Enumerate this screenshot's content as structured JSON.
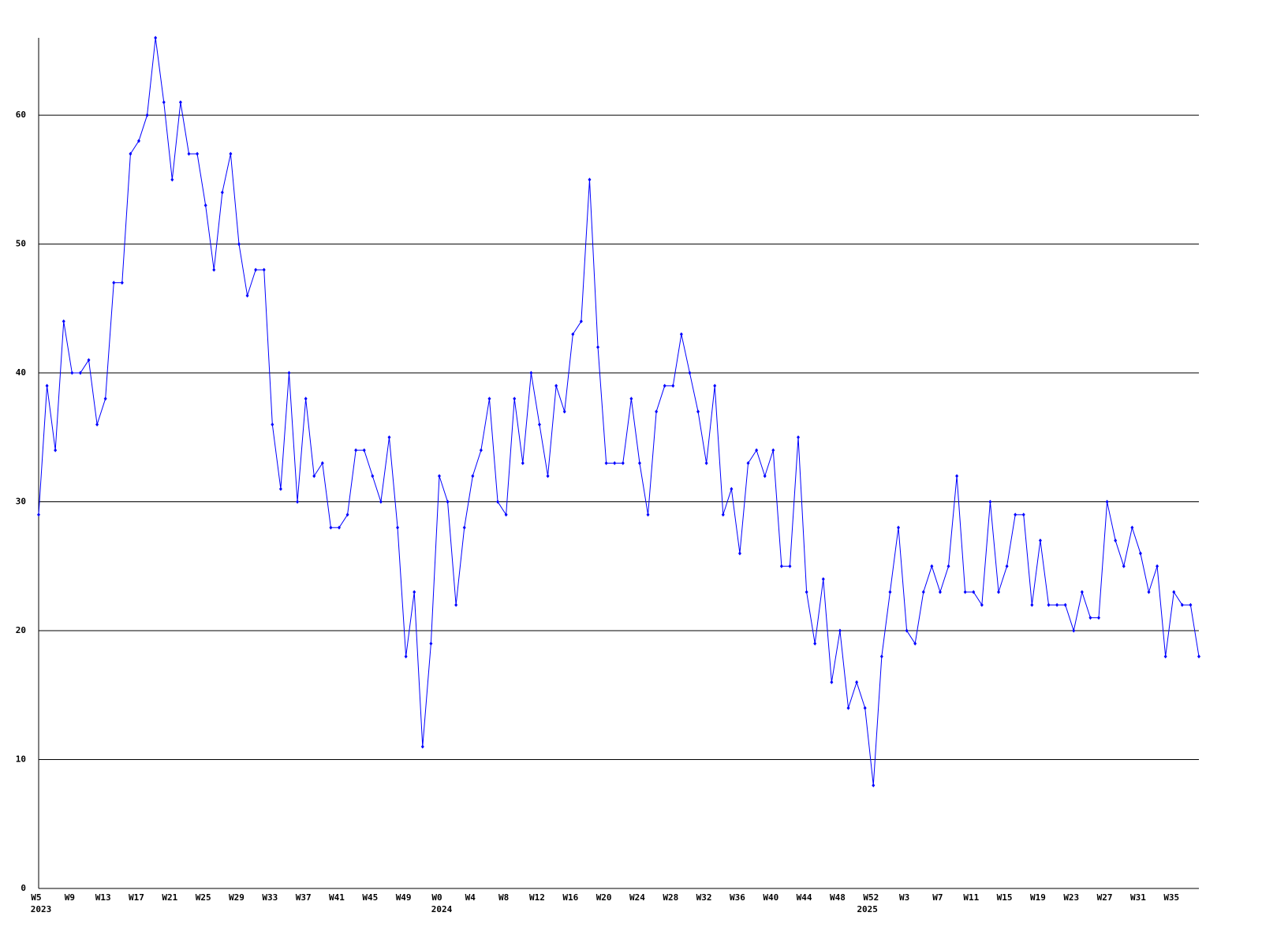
{
  "chart_data": {
    "type": "line",
    "color": "#0000ff",
    "grid": true,
    "ylim": [
      0,
      66
    ],
    "yticks": [
      0,
      10,
      20,
      30,
      40,
      50,
      60
    ],
    "categories": [
      "W5",
      null,
      null,
      null,
      "W9",
      null,
      null,
      null,
      "W13",
      null,
      null,
      null,
      "W17",
      null,
      null,
      null,
      "W21",
      null,
      null,
      null,
      "W25",
      null,
      null,
      null,
      "W29",
      null,
      null,
      null,
      "W33",
      null,
      null,
      null,
      "W37",
      null,
      null,
      null,
      "W41",
      null,
      null,
      null,
      "W45",
      null,
      null,
      null,
      "W49",
      null,
      null,
      null,
      "W0",
      null,
      null,
      null,
      "W4",
      null,
      null,
      null,
      "W8",
      null,
      null,
      null,
      "W12",
      null,
      null,
      null,
      "W16",
      null,
      null,
      null,
      "W20",
      null,
      null,
      null,
      "W24",
      null,
      null,
      null,
      "W28",
      null,
      null,
      null,
      "W32",
      null,
      null,
      null,
      "W36",
      null,
      null,
      null,
      "W40",
      null,
      null,
      null,
      "W44",
      null,
      null,
      null,
      "W48",
      null,
      null,
      null,
      "W52",
      null,
      null,
      null,
      "W3",
      null,
      null,
      null,
      "W7",
      null,
      null,
      null,
      "W11",
      null,
      null,
      null,
      "W15",
      null,
      null,
      null,
      "W19",
      null,
      null,
      null,
      "W23",
      null,
      null,
      null,
      "W27",
      null,
      null,
      null,
      "W31",
      null,
      null,
      null,
      "W35",
      null,
      null,
      null
    ],
    "category_years": [
      "2023",
      null,
      null,
      null,
      null,
      null,
      null,
      null,
      null,
      null,
      null,
      null,
      null,
      null,
      null,
      null,
      null,
      null,
      null,
      null,
      null,
      null,
      null,
      null,
      null,
      null,
      null,
      null,
      null,
      null,
      null,
      null,
      null,
      null,
      null,
      null,
      null,
      null,
      null,
      null,
      null,
      null,
      null,
      null,
      null,
      null,
      null,
      null,
      "2024",
      null,
      null,
      null,
      null,
      null,
      null,
      null,
      null,
      null,
      null,
      null,
      null,
      null,
      null,
      null,
      null,
      null,
      null,
      null,
      null,
      null,
      null,
      null,
      null,
      null,
      null,
      null,
      null,
      null,
      null,
      null,
      null,
      null,
      null,
      null,
      null,
      null,
      null,
      null,
      null,
      null,
      null,
      null,
      null,
      null,
      null,
      null,
      null,
      null,
      null,
      "2025",
      null,
      null,
      null,
      null,
      null,
      null,
      null,
      null,
      null,
      null,
      null,
      null,
      null,
      null,
      null,
      null,
      null,
      null,
      null,
      null,
      null,
      null,
      null,
      null,
      null,
      null,
      null,
      null,
      null,
      null,
      null,
      null,
      null,
      null,
      null,
      null,
      null,
      null
    ],
    "values": [
      29,
      39,
      34,
      44,
      40,
      40,
      41,
      36,
      38,
      47,
      47,
      57,
      58,
      60,
      66,
      61,
      55,
      61,
      57,
      57,
      53,
      48,
      54,
      57,
      50,
      46,
      48,
      48,
      36,
      31,
      40,
      30,
      38,
      32,
      33,
      28,
      28,
      29,
      34,
      34,
      32,
      30,
      35,
      28,
      18,
      23,
      11,
      19,
      32,
      30,
      22,
      28,
      32,
      34,
      38,
      30,
      29,
      38,
      33,
      40,
      36,
      32,
      39,
      37,
      43,
      44,
      55,
      42,
      33,
      33,
      33,
      38,
      33,
      29,
      37,
      39,
      39,
      43,
      40,
      37,
      33,
      39,
      29,
      31,
      26,
      33,
      34,
      32,
      34,
      25,
      25,
      35,
      23,
      19,
      24,
      16,
      20,
      14,
      16,
      14,
      8,
      18,
      23,
      28,
      20,
      19,
      23,
      25,
      23,
      25,
      32,
      23,
      23,
      22,
      30,
      23,
      25,
      29,
      29,
      22,
      27,
      22,
      22,
      22,
      20,
      23,
      21,
      21,
      30,
      27,
      25,
      28,
      26,
      23,
      25,
      18,
      23,
      22,
      22,
      18
    ]
  }
}
